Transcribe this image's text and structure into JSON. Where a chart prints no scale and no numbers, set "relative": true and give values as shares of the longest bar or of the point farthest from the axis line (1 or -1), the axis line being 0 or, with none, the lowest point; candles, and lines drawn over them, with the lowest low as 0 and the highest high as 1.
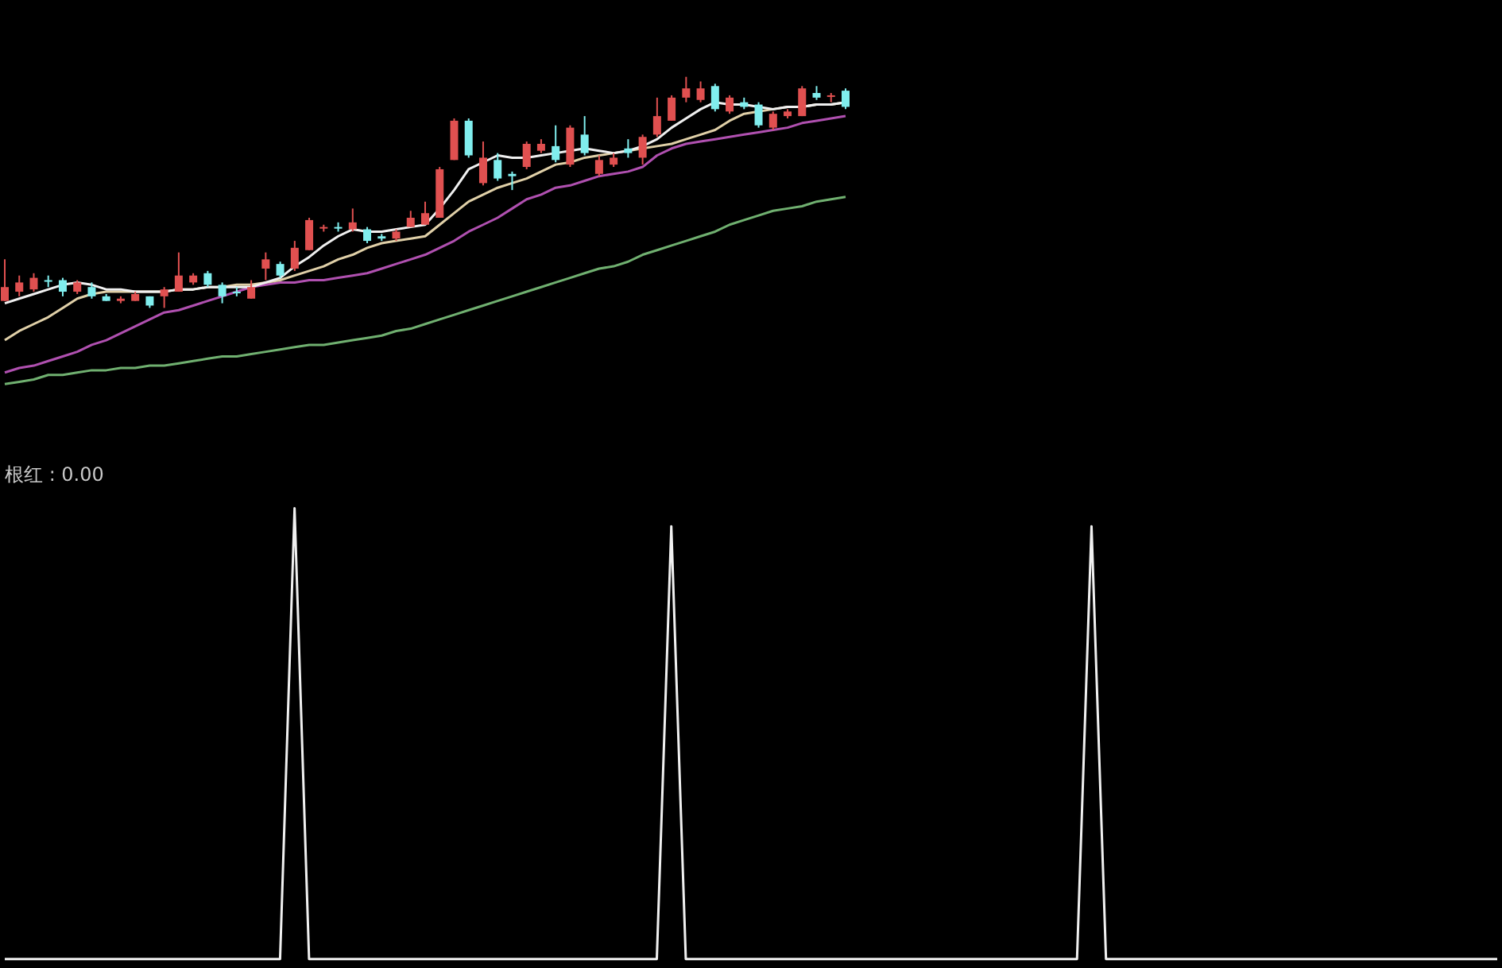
{
  "chart_data": [
    {
      "type": "candlestick",
      "relative": true,
      "tick_labels": false,
      "categories": [
        null,
        null,
        null,
        null,
        null,
        null,
        null,
        null,
        null,
        null,
        null,
        null,
        null,
        null,
        null,
        null,
        null,
        null,
        null,
        null,
        null,
        null,
        null,
        null,
        null,
        null,
        null,
        null,
        null,
        null,
        null,
        null,
        null,
        null,
        null,
        null,
        null,
        null,
        null,
        null,
        null,
        null,
        null,
        null,
        null,
        null,
        null,
        null,
        null,
        null,
        null,
        null,
        null,
        null,
        null,
        null,
        null,
        null,
        null
      ],
      "ohlc": [
        [
          0.03,
          0.21,
          0.03,
          0.09
        ],
        [
          0.07,
          0.14,
          0.05,
          0.11
        ],
        [
          0.08,
          0.15,
          0.07,
          0.13
        ],
        [
          0.12,
          0.14,
          0.09,
          0.12
        ],
        [
          0.12,
          0.13,
          0.05,
          0.07
        ],
        [
          0.07,
          0.12,
          0.06,
          0.11
        ],
        [
          0.09,
          0.11,
          0.04,
          0.05
        ],
        [
          0.05,
          0.06,
          0.03,
          0.03
        ],
        [
          0.03,
          0.05,
          0.02,
          0.04
        ],
        [
          0.03,
          0.07,
          0.03,
          0.06
        ],
        [
          0.05,
          0.05,
          0,
          0.01
        ],
        [
          0.05,
          0.09,
          0,
          0.08
        ],
        [
          0.07,
          0.24,
          0.07,
          0.14
        ],
        [
          0.11,
          0.15,
          0.1,
          0.14
        ],
        [
          0.15,
          0.16,
          0.09,
          0.1
        ],
        [
          0.1,
          0.11,
          0.02,
          0.05
        ],
        [
          0.07,
          0.09,
          0.05,
          0.07
        ],
        [
          0.04,
          0.12,
          0.04,
          0.09
        ],
        [
          0.17,
          0.24,
          0.12,
          0.21
        ],
        [
          0.19,
          0.2,
          0.13,
          0.14
        ],
        [
          0.17,
          0.29,
          0.16,
          0.26
        ],
        [
          0.25,
          0.39,
          0.25,
          0.38
        ],
        [
          0.35,
          0.36,
          0.33,
          0.35
        ],
        [
          0.35,
          0.37,
          0.33,
          0.35
        ],
        [
          0.34,
          0.43,
          0.33,
          0.37
        ],
        [
          0.34,
          0.35,
          0.28,
          0.29
        ],
        [
          0.31,
          0.32,
          0.29,
          0.3
        ],
        [
          0.3,
          0.34,
          0.29,
          0.33
        ],
        [
          0.35,
          0.42,
          0.35,
          0.39
        ],
        [
          0.36,
          0.46,
          0.36,
          0.41
        ],
        [
          0.39,
          0.61,
          0.39,
          0.6
        ],
        [
          0.64,
          0.82,
          0.64,
          0.81
        ],
        [
          0.81,
          0.82,
          0.65,
          0.66
        ],
        [
          0.54,
          0.72,
          0.53,
          0.65
        ],
        [
          0.64,
          0.67,
          0.55,
          0.56
        ],
        [
          0.58,
          0.59,
          0.51,
          0.57
        ],
        [
          0.61,
          0.72,
          0.6,
          0.71
        ],
        [
          0.68,
          0.73,
          0.67,
          0.71
        ],
        [
          0.7,
          0.79,
          0.63,
          0.64
        ],
        [
          0.62,
          0.79,
          0.61,
          0.78
        ],
        [
          0.75,
          0.83,
          0.66,
          0.67
        ],
        [
          0.58,
          0.66,
          0.57,
          0.64
        ],
        [
          0.62,
          0.67,
          0.61,
          0.65
        ],
        [
          0.69,
          0.73,
          0.65,
          0.67
        ],
        [
          0.65,
          0.75,
          0.62,
          0.74
        ],
        [
          0.75,
          0.91,
          0.74,
          0.83
        ],
        [
          0.81,
          0.92,
          0.81,
          0.91
        ],
        [
          0.91,
          1,
          0.89,
          0.95
        ],
        [
          0.9,
          0.98,
          0.89,
          0.95
        ],
        [
          0.96,
          0.97,
          0.85,
          0.86
        ],
        [
          0.85,
          0.92,
          0.84,
          0.91
        ],
        [
          0.89,
          0.91,
          0.86,
          0.87
        ],
        [
          0.88,
          0.89,
          0.78,
          0.79
        ],
        [
          0.78,
          0.85,
          0.77,
          0.84
        ],
        [
          0.83,
          0.86,
          0.82,
          0.85
        ],
        [
          0.83,
          0.96,
          0.83,
          0.95
        ],
        [
          0.93,
          0.96,
          0.9,
          0.91
        ],
        [
          0.92,
          0.93,
          0.89,
          0.92
        ],
        [
          0.94,
          0.95,
          0.86,
          0.87
        ]
      ],
      "colors": [
        "#e05050",
        "#e05050",
        "#e05050",
        "#80eeee",
        "#80eeee",
        "#e05050",
        "#80eeee",
        "#80eeee",
        "#e05050",
        "#e05050",
        "#80eeee",
        "#e05050",
        "#e05050",
        "#e05050",
        "#80eeee",
        "#80eeee",
        "#80eeee",
        "#e05050",
        "#e05050",
        "#80eeee",
        "#e05050",
        "#e05050",
        "#e05050",
        "#80eeee",
        "#e05050",
        "#80eeee",
        "#80eeee",
        "#e05050",
        "#e05050",
        "#e05050",
        "#e05050",
        "#e05050",
        "#80eeee",
        "#e05050",
        "#80eeee",
        "#80eeee",
        "#e05050",
        "#e05050",
        "#80eeee",
        "#e05050",
        "#80eeee",
        "#e05050",
        "#e05050",
        "#80eeee",
        "#e05050",
        "#e05050",
        "#e05050",
        "#e05050",
        "#e05050",
        "#80eeee",
        "#e05050",
        "#80eeee",
        "#80eeee",
        "#e05050",
        "#e05050",
        "#e05050",
        "#80eeee",
        "#e05050",
        "#80eeee"
      ],
      "series": [
        {
          "type": "line",
          "color": "#f0f0f0",
          "values": [
            0.02,
            0.04,
            0.06,
            0.08,
            0.1,
            0.11,
            0.1,
            0.08,
            0.08,
            0.07,
            0.07,
            0.07,
            0.08,
            0.08,
            0.09,
            0.09,
            0.09,
            0.09,
            0.11,
            0.13,
            0.18,
            0.22,
            0.27,
            0.31,
            0.34,
            0.33,
            0.33,
            0.34,
            0.35,
            0.36,
            0.43,
            0.51,
            0.6,
            0.63,
            0.66,
            0.65,
            0.65,
            0.66,
            0.67,
            0.68,
            0.69,
            0.68,
            0.67,
            0.68,
            0.7,
            0.73,
            0.78,
            0.82,
            0.86,
            0.89,
            0.88,
            0.88,
            0.87,
            0.86,
            0.87,
            0.87,
            0.88,
            0.88,
            0.89
          ]
        },
        {
          "type": "line",
          "color": "#e0d0a8",
          "values": [
            -0.14,
            -0.1,
            -0.07,
            -0.04,
            0,
            0.04,
            0.06,
            0.07,
            0.07,
            0.07,
            0.07,
            0.07,
            0.08,
            0.08,
            0.09,
            0.09,
            0.1,
            0.1,
            0.11,
            0.12,
            0.14,
            0.16,
            0.18,
            0.21,
            0.23,
            0.26,
            0.28,
            0.29,
            0.3,
            0.31,
            0.36,
            0.41,
            0.46,
            0.49,
            0.52,
            0.54,
            0.56,
            0.59,
            0.62,
            0.63,
            0.65,
            0.66,
            0.67,
            0.68,
            0.69,
            0.7,
            0.71,
            0.73,
            0.75,
            0.77,
            0.81,
            0.84,
            0.85,
            0.86,
            0.87,
            0.87,
            0.88,
            0.88,
            0.89
          ]
        },
        {
          "type": "line",
          "color": "#b050b0",
          "values": [
            -0.28,
            -0.26,
            -0.25,
            -0.23,
            -0.21,
            -0.19,
            -0.16,
            -0.14,
            -0.11,
            -0.08,
            -0.05,
            -0.02,
            -0.01,
            0.01,
            0.03,
            0.05,
            0.07,
            0.09,
            0.1,
            0.11,
            0.11,
            0.12,
            0.12,
            0.13,
            0.14,
            0.15,
            0.17,
            0.19,
            0.21,
            0.23,
            0.26,
            0.29,
            0.33,
            0.36,
            0.39,
            0.43,
            0.47,
            0.49,
            0.52,
            0.53,
            0.55,
            0.57,
            0.58,
            0.59,
            0.61,
            0.66,
            0.69,
            0.71,
            0.72,
            0.73,
            0.74,
            0.75,
            0.76,
            0.77,
            0.78,
            0.8,
            0.81,
            0.82,
            0.83
          ]
        },
        {
          "type": "line",
          "color": "#70b070",
          "values": [
            -0.33,
            -0.32,
            -0.31,
            -0.29,
            -0.29,
            -0.28,
            -0.27,
            -0.27,
            -0.26,
            -0.26,
            -0.25,
            -0.25,
            -0.24,
            -0.23,
            -0.22,
            -0.21,
            -0.21,
            -0.2,
            -0.19,
            -0.18,
            -0.17,
            -0.16,
            -0.16,
            -0.15,
            -0.14,
            -0.13,
            -0.12,
            -0.1,
            -0.09,
            -0.07,
            -0.05,
            -0.03,
            -0.01,
            0.01,
            0.03,
            0.05,
            0.07,
            0.09,
            0.11,
            0.13,
            0.15,
            0.17,
            0.18,
            0.2,
            0.23,
            0.25,
            0.27,
            0.29,
            0.31,
            0.33,
            0.36,
            0.38,
            0.4,
            0.42,
            0.43,
            0.44,
            0.46,
            0.47,
            0.48
          ]
        }
      ]
    },
    {
      "type": "line",
      "relative": true,
      "title": "根红 : 0.00",
      "tick_labels": false,
      "color": "#f0f0f0",
      "categories": [
        null,
        null,
        null,
        null,
        null,
        null,
        null,
        null,
        null,
        null,
        null,
        null,
        null,
        null,
        null,
        null,
        null,
        null,
        null,
        null,
        null,
        null,
        null,
        null,
        null,
        null,
        null,
        null,
        null,
        null,
        null,
        null,
        null,
        null,
        null,
        null,
        null,
        null,
        null,
        null,
        null,
        null,
        null,
        null,
        null,
        null,
        null,
        null,
        null,
        null,
        null,
        null,
        null,
        null,
        null,
        null,
        null,
        null,
        null,
        null,
        null,
        null,
        null,
        null,
        null,
        null,
        null,
        null,
        null,
        null,
        null,
        null,
        null,
        null,
        null,
        null,
        null,
        null,
        null,
        null,
        null,
        null,
        null,
        null,
        null,
        null,
        null,
        null,
        null,
        null,
        null,
        null,
        null,
        null,
        null,
        null,
        null,
        null,
        null,
        null,
        null,
        null,
        null,
        null
      ],
      "values": [
        0,
        0,
        0,
        0,
        0,
        0,
        0,
        0,
        0,
        0,
        0,
        0,
        0,
        0,
        0,
        0,
        0,
        0,
        0,
        0,
        1,
        0,
        0,
        0,
        0,
        0,
        0,
        0,
        0,
        0,
        0,
        0,
        0,
        0,
        0,
        0,
        0,
        0,
        0,
        0,
        0,
        0,
        0,
        0,
        0,
        0,
        0.96,
        0,
        0,
        0,
        0,
        0,
        0,
        0,
        0,
        0,
        0,
        0,
        0,
        0,
        0,
        0,
        0,
        0,
        0,
        0,
        0,
        0,
        0,
        0,
        0,
        0,
        0,
        0,
        0,
        0.96,
        0,
        0,
        0,
        0,
        0,
        0,
        0,
        0,
        0,
        0,
        0,
        0,
        0,
        0,
        0,
        0,
        0,
        0,
        0,
        0,
        0,
        0,
        0,
        0,
        0,
        0,
        0,
        0
      ]
    }
  ]
}
